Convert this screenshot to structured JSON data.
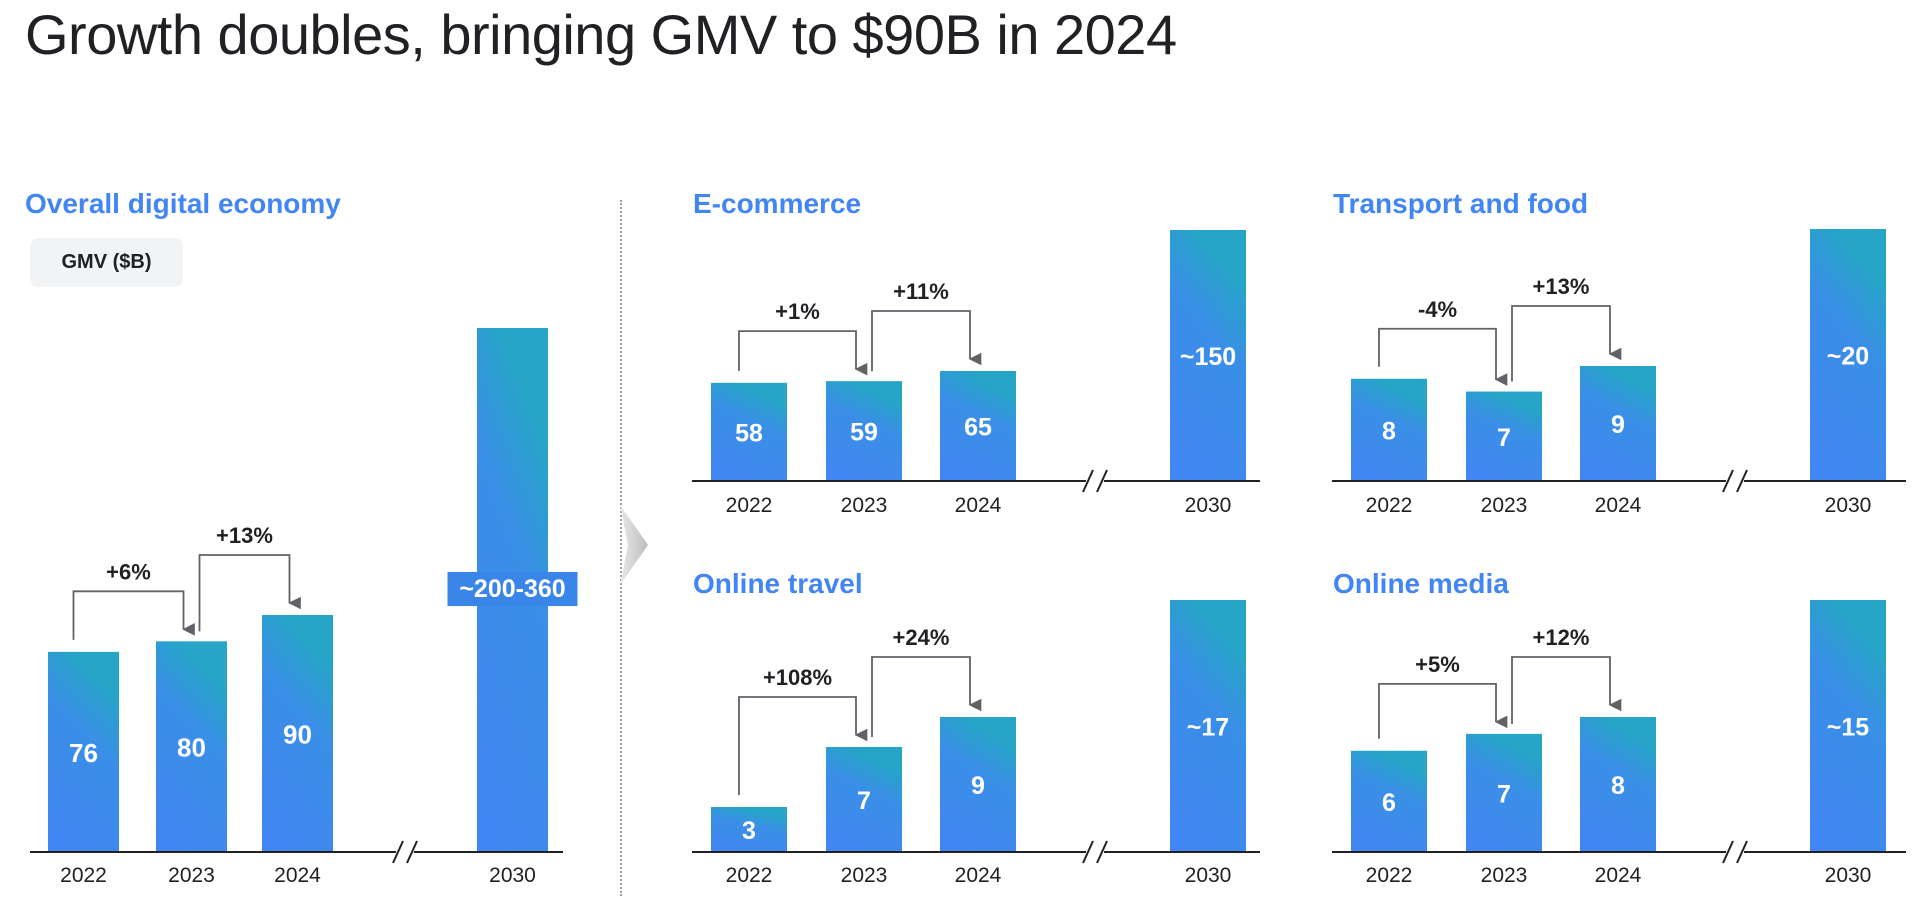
{
  "title": "Growth doubles, bringing GMV to $90B in 2024",
  "units_badge": "GMV ($B)",
  "colors": {
    "accent": "#4285F4",
    "bar_bottom": "#4285F4",
    "bar_top": "#26A5C7",
    "text": "#202124",
    "axis": "#202124",
    "arrow": "#5f6368"
  },
  "chart_data": [
    {
      "type": "bar",
      "title": "Overall digital economy",
      "categories": [
        "2022",
        "2023",
        "2024",
        "2030"
      ],
      "values": [
        76,
        80,
        90,
        280
      ],
      "value_labels": [
        "76",
        "80",
        "90",
        "~200-360"
      ],
      "growth": [
        "+6%",
        "+13%"
      ],
      "axis_break": "between 2024 and 2030"
    },
    {
      "type": "bar",
      "title": "E-commerce",
      "categories": [
        "2022",
        "2023",
        "2024",
        "2030"
      ],
      "values": [
        58,
        59,
        65,
        150
      ],
      "value_labels": [
        "58",
        "59",
        "65",
        "~150"
      ],
      "growth": [
        "+1%",
        "+11%"
      ],
      "axis_break": "between 2024 and 2030"
    },
    {
      "type": "bar",
      "title": "Transport and food",
      "categories": [
        "2022",
        "2023",
        "2024",
        "2030"
      ],
      "values": [
        8,
        7,
        9,
        20
      ],
      "value_labels": [
        "8",
        "7",
        "9",
        "~20"
      ],
      "growth": [
        "-4%",
        "+13%"
      ],
      "axis_break": "between 2024 and 2030"
    },
    {
      "type": "bar",
      "title": "Online travel",
      "categories": [
        "2022",
        "2023",
        "2024",
        "2030"
      ],
      "values": [
        3,
        7,
        9,
        17
      ],
      "value_labels": [
        "3",
        "7",
        "9",
        "~17"
      ],
      "growth": [
        "+108%",
        "+24%"
      ],
      "axis_break": "between 2024 and 2030"
    },
    {
      "type": "bar",
      "title": "Online media",
      "categories": [
        "2022",
        "2023",
        "2024",
        "2030"
      ],
      "values": [
        6,
        7,
        8,
        15
      ],
      "value_labels": [
        "6",
        "7",
        "8",
        "~15"
      ],
      "growth": [
        "+5%",
        "+12%"
      ],
      "axis_break": "between 2024 and 2030"
    }
  ]
}
